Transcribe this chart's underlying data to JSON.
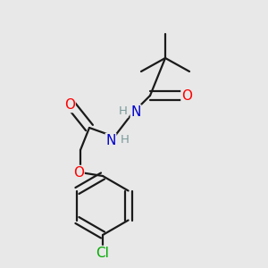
{
  "bg_color": "#e8e8e8",
  "bond_color": "#1a1a1a",
  "bond_width": 1.6,
  "atom_colors": {
    "N": "#0000cc",
    "O": "#ff0000",
    "Cl": "#00aa00",
    "H": "#7a9a9a"
  },
  "font_size_atom": 11,
  "font_size_H": 9.5
}
